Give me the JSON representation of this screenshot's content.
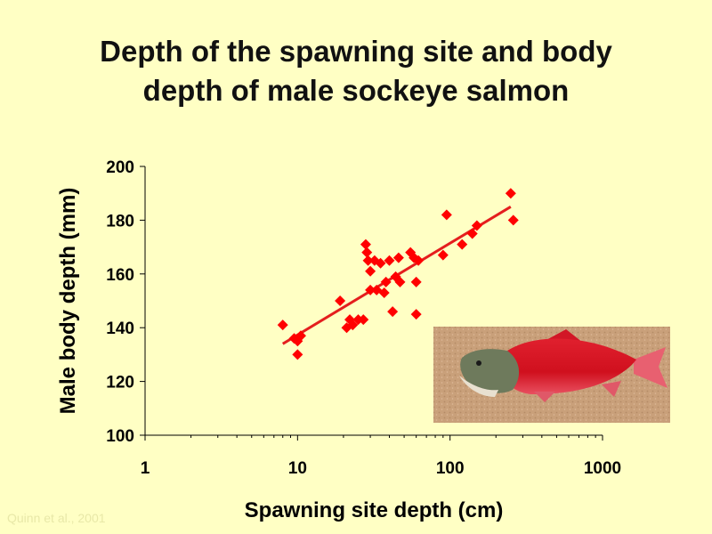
{
  "title_line1": "Depth of the spawning site and body",
  "title_line2": "depth of male sockeye salmon",
  "credit": "Quinn et al., 2001",
  "chart_data": {
    "type": "scatter",
    "title": "Depth of the spawning site and body depth of male sockeye salmon",
    "xlabel": "Spawning site depth (cm)",
    "ylabel": "Male body depth (mm)",
    "xscale": "log",
    "xlim": [
      1,
      1000
    ],
    "ylim": [
      100,
      200
    ],
    "xticks": [
      "1",
      "10",
      "100",
      "1000"
    ],
    "yticks": [
      "100",
      "120",
      "140",
      "160",
      "180",
      "200"
    ],
    "grid": false,
    "marker_color": "#FF0000",
    "series": [
      {
        "points": [
          [
            8,
            141
          ],
          [
            9.5,
            136
          ],
          [
            10,
            135
          ],
          [
            10,
            130
          ],
          [
            10.5,
            137
          ],
          [
            19,
            150
          ],
          [
            21,
            140
          ],
          [
            22,
            143
          ],
          [
            23,
            141
          ],
          [
            25,
            143
          ],
          [
            27,
            143
          ],
          [
            28,
            171
          ],
          [
            28.5,
            168
          ],
          [
            29,
            165
          ],
          [
            30,
            154
          ],
          [
            30,
            161
          ],
          [
            32,
            165
          ],
          [
            33,
            154
          ],
          [
            35,
            164
          ],
          [
            37,
            153
          ],
          [
            38,
            157
          ],
          [
            40,
            165
          ],
          [
            42,
            146
          ],
          [
            44,
            159
          ],
          [
            46,
            166
          ],
          [
            47,
            157
          ],
          [
            55,
            168
          ],
          [
            58,
            166
          ],
          [
            60,
            157
          ],
          [
            60,
            145
          ],
          [
            62,
            165
          ],
          [
            90,
            167
          ],
          [
            95,
            182
          ],
          [
            120,
            171
          ],
          [
            140,
            175
          ],
          [
            150,
            178
          ],
          [
            250,
            190
          ],
          [
            260,
            180
          ]
        ]
      }
    ],
    "trendline": {
      "x": [
        8,
        250
      ],
      "y": [
        134,
        185
      ],
      "color": "#E41E1E"
    }
  }
}
